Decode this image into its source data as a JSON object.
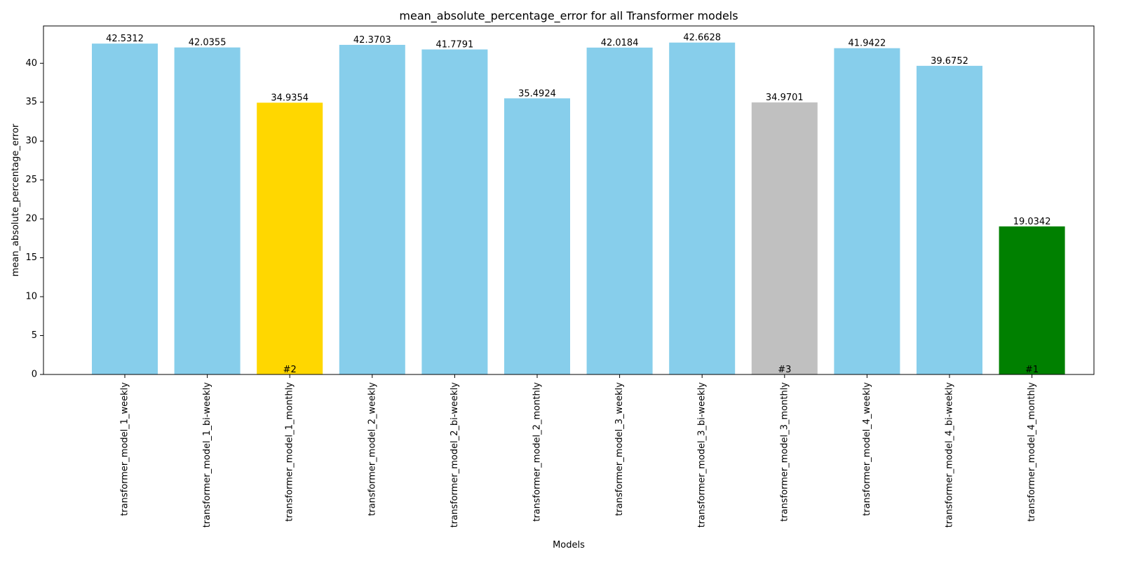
{
  "chart_data": {
    "type": "bar",
    "title": "mean_absolute_percentage_error for all Transformer models",
    "xlabel": "Models",
    "ylabel": "mean_absolute_percentage_error",
    "ylim": [
      0,
      44.8
    ],
    "yticks": [
      0,
      5,
      10,
      15,
      20,
      25,
      30,
      35,
      40
    ],
    "grid": false,
    "categories": [
      "transformer_model_1_weekly",
      "transformer_model_1_bi-weekly",
      "transformer_model_1_monthly",
      "transformer_model_2_weekly",
      "transformer_model_2_bi-weekly",
      "transformer_model_2_monthly",
      "transformer_model_3_weekly",
      "transformer_model_3_bi-weekly",
      "transformer_model_3_monthly",
      "transformer_model_4_weekly",
      "transformer_model_4_bi-weekly",
      "transformer_model_4_monthly"
    ],
    "values": [
      42.5312,
      42.0355,
      34.9354,
      42.3703,
      41.7791,
      35.4924,
      42.0184,
      42.6628,
      34.9701,
      41.9422,
      39.6752,
      19.0342
    ],
    "value_labels": [
      "42.5312",
      "42.0355",
      "34.9354",
      "42.3703",
      "41.7791",
      "35.4924",
      "42.0184",
      "42.6628",
      "34.9701",
      "41.9422",
      "39.6752",
      "19.0342"
    ],
    "rank_labels": [
      "",
      "",
      "#2",
      "",
      "",
      "",
      "",
      "",
      "#3",
      "",
      "",
      "#1"
    ],
    "colors": [
      "#87CEEB",
      "#87CEEB",
      "#FFD700",
      "#87CEEB",
      "#87CEEB",
      "#87CEEB",
      "#87CEEB",
      "#87CEEB",
      "#C0C0C0",
      "#87CEEB",
      "#87CEEB",
      "#008000"
    ]
  }
}
